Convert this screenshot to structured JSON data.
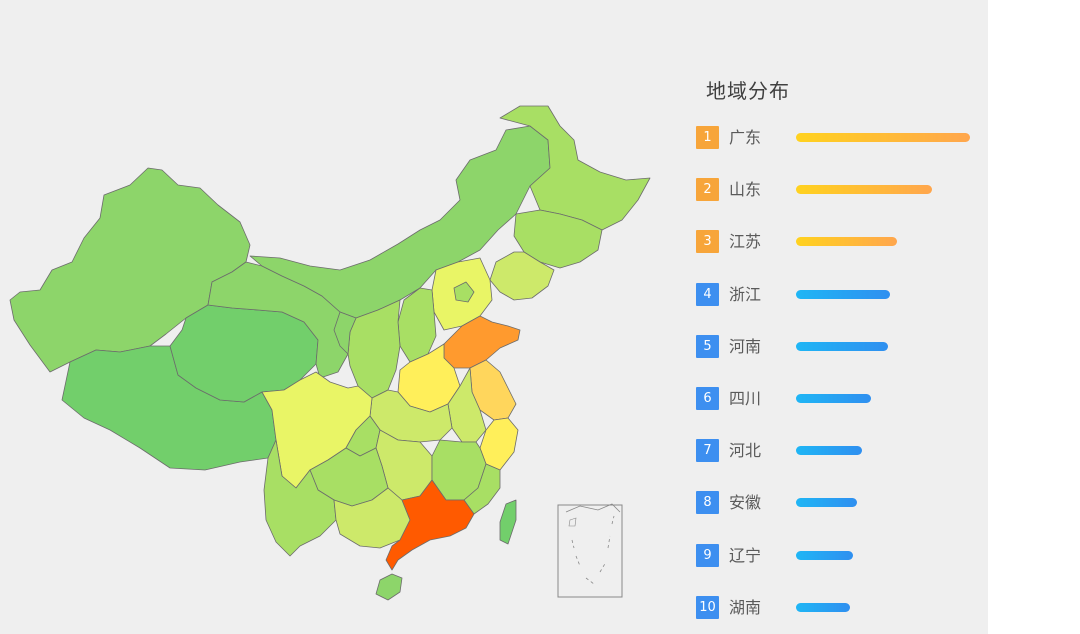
{
  "chart_data": {
    "type": "map",
    "title": "地域分布",
    "ranking": [
      {
        "rank": "1",
        "name": "广东",
        "value": 100
      },
      {
        "rank": "2",
        "name": "山东",
        "value": 78
      },
      {
        "rank": "3",
        "name": "江苏",
        "value": 58
      },
      {
        "rank": "4",
        "name": "浙江",
        "value": 54
      },
      {
        "rank": "5",
        "name": "河南",
        "value": 53
      },
      {
        "rank": "6",
        "name": "四川",
        "value": 43
      },
      {
        "rank": "7",
        "name": "河北",
        "value": 38
      },
      {
        "rank": "8",
        "name": "安徽",
        "value": 35
      },
      {
        "rank": "9",
        "name": "辽宁",
        "value": 33
      },
      {
        "rank": "10",
        "name": "湖南",
        "value": 31
      }
    ],
    "top_badge_color": "#f7a53a",
    "other_badge_color": "#3d8ff0",
    "top_bar_gradient": [
      "#ffd21f",
      "#ffa64d"
    ],
    "other_bar_gradient": [
      "#1fb6f5",
      "#2f8ff0"
    ],
    "map_fill_colors": {
      "highest": "#ff5a00",
      "high": "#ff9a2e",
      "mid_high": "#ffd65c",
      "mid": "#ffef5a",
      "low_mid": "#e9f566",
      "low": "#cde96a",
      "lower": "#a8df64",
      "lowest": "#72cf6b"
    }
  }
}
